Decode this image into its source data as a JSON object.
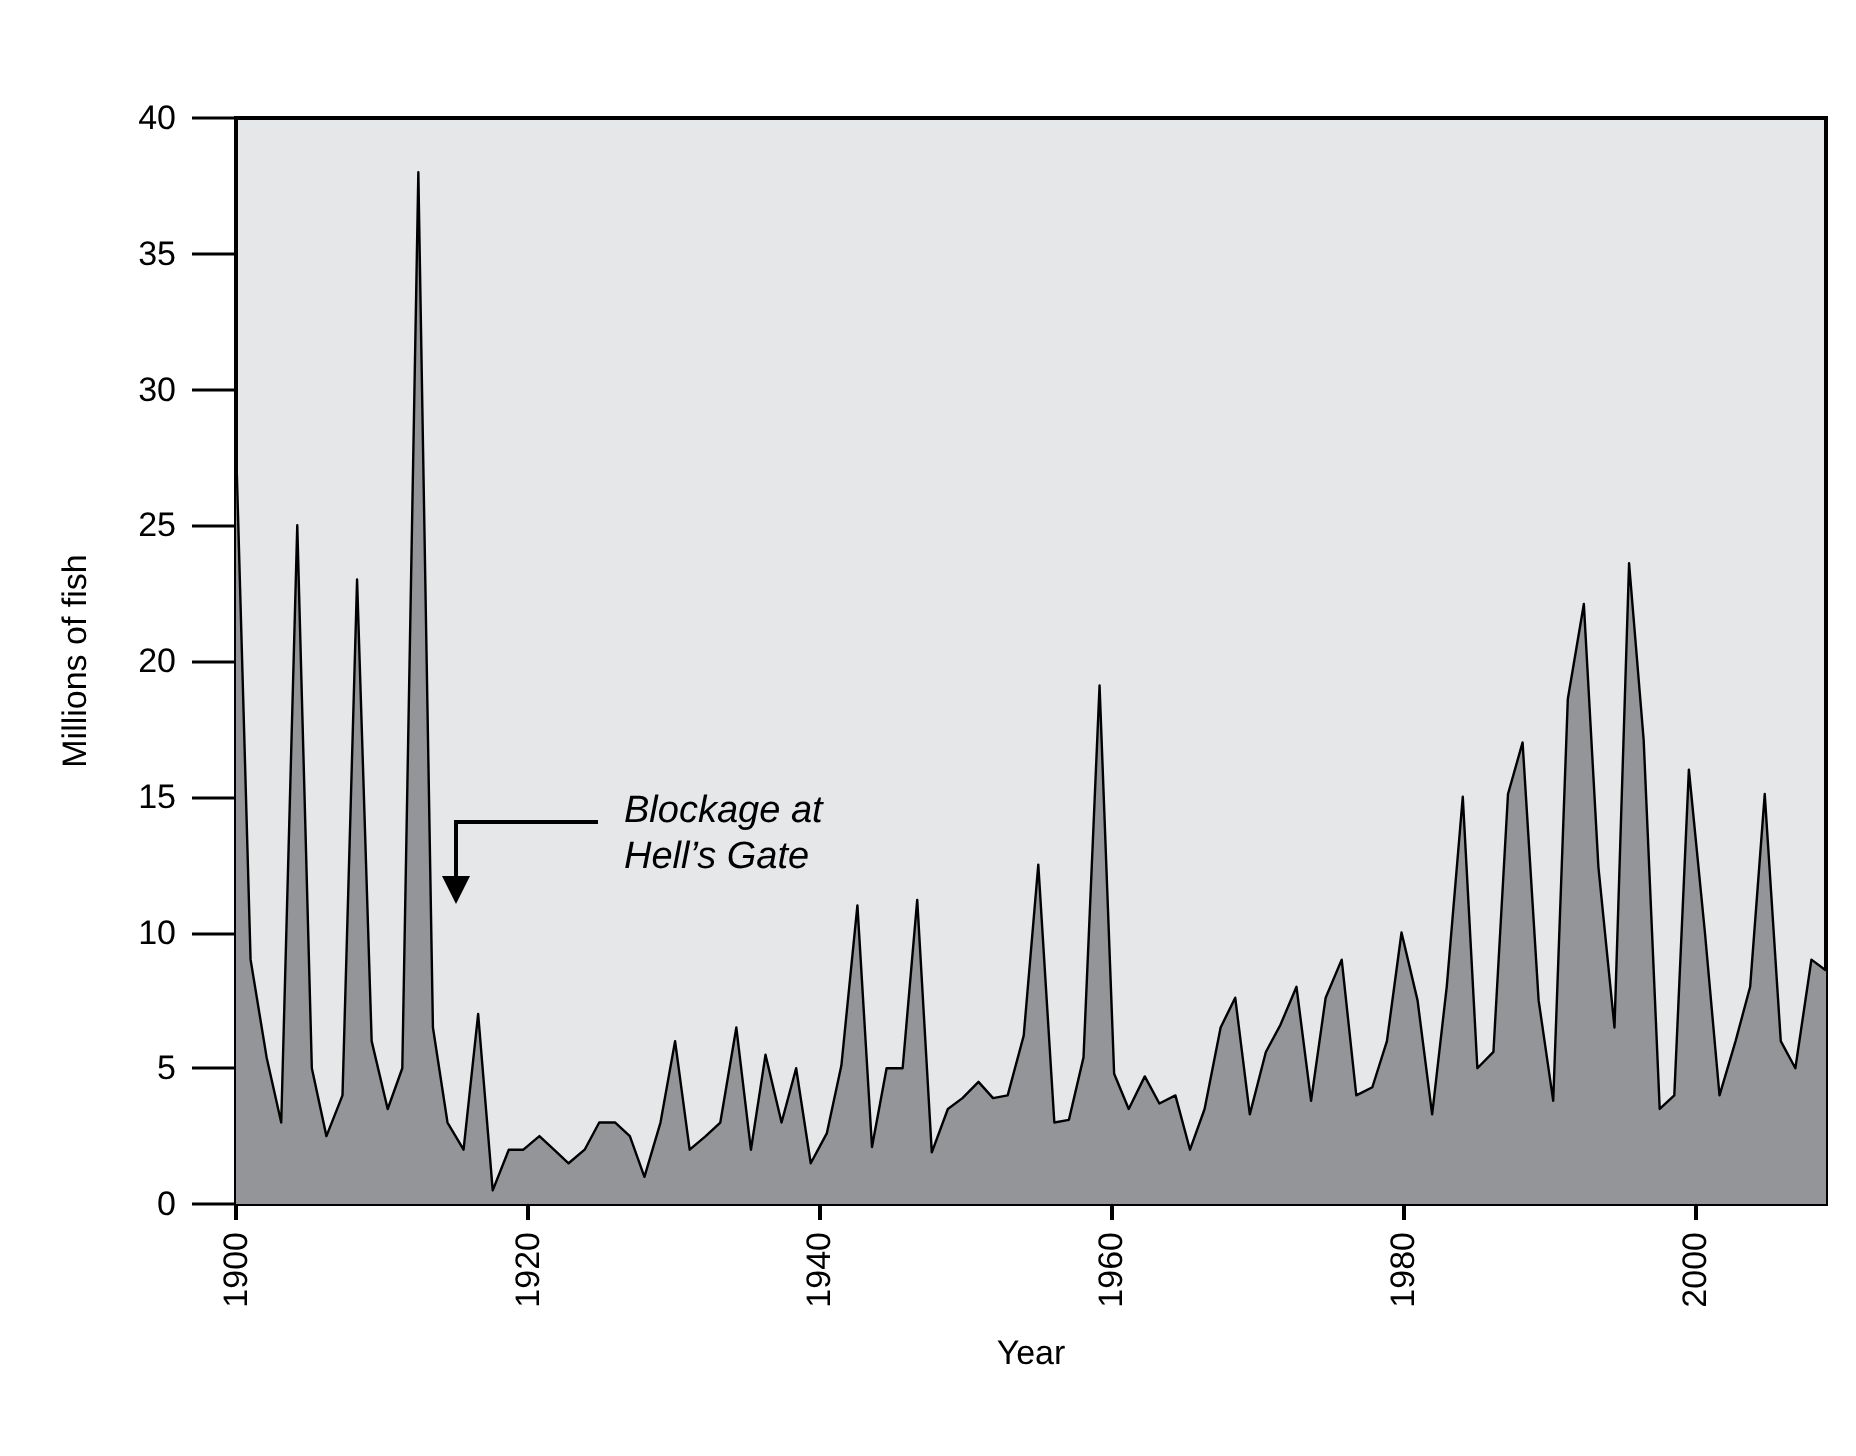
{
  "chart_data": {
    "type": "area",
    "xlabel": "Year",
    "ylabel": "Millions of fish",
    "xlim": [
      1900,
      2009
    ],
    "xticks": [
      1900,
      1920,
      1940,
      1960,
      1980,
      2000
    ],
    "ylim": [
      0,
      40
    ],
    "yticks": [
      0,
      5,
      10,
      15,
      20,
      25,
      30,
      35,
      40
    ],
    "grid": false,
    "marker": "none",
    "line_style": "solid",
    "annotations": [
      "Blockage at\nHell’s Gate"
    ],
    "series": [
      {
        "color": "#939598",
        "x": [
          1900.0,
          1901.0,
          1902.1,
          1903.1,
          1904.2,
          1905.2,
          1906.2,
          1907.3,
          1908.3,
          1909.3,
          1910.4,
          1911.4,
          1912.5,
          1913.5,
          1914.5,
          1915.6,
          1916.6,
          1917.6,
          1918.7,
          1919.7,
          1920.8,
          1921.8,
          1922.8,
          1923.9,
          1924.9,
          1926.0,
          1927.0,
          1928.0,
          1929.1,
          1930.1,
          1931.1,
          1932.2,
          1933.2,
          1934.3,
          1935.3,
          1936.3,
          1937.4,
          1938.4,
          1939.4,
          1940.5,
          1941.5,
          1942.6,
          1943.6,
          1944.6,
          1945.7,
          1946.7,
          1947.7,
          1948.8,
          1949.8,
          1950.9,
          1951.9,
          1952.9,
          1954.0,
          1955.0,
          1956.1,
          1957.1,
          1958.1,
          1959.2,
          1960.2,
          1961.2,
          1962.3,
          1963.3,
          1964.4,
          1965.4,
          1966.4,
          1967.5,
          1968.5,
          1969.5,
          1970.6,
          1971.6,
          1972.7,
          1973.7,
          1974.7,
          1975.8,
          1976.8,
          1977.9,
          1978.9,
          1979.9,
          1981.0,
          1982.0,
          1983.0,
          1984.1,
          1985.1,
          1986.2,
          1987.2,
          1988.2,
          1989.3,
          1990.3,
          1991.3,
          1992.4,
          1993.4,
          1994.5,
          1995.5,
          1996.5,
          1997.6,
          1998.6,
          1999.6,
          2000.7,
          2001.7,
          2002.8,
          2003.8,
          2004.8,
          2005.9,
          2006.9,
          2008.0,
          2009.0
        ],
        "values": [
          28,
          9,
          5.4,
          3,
          25,
          5,
          2.5,
          4,
          23,
          6,
          3.5,
          5,
          38,
          6.5,
          3,
          2,
          7,
          0.5,
          2,
          2,
          2.5,
          2,
          1.5,
          2,
          3,
          3,
          2.5,
          1,
          3,
          6,
          2,
          2.5,
          3,
          6.5,
          2,
          5.5,
          3,
          5,
          1.5,
          2.6,
          5.1,
          11,
          2.1,
          5,
          5,
          11.2,
          1.9,
          3.5,
          3.9,
          4.5,
          3.9,
          4,
          6.2,
          12.5,
          3,
          3.1,
          5.4,
          19.1,
          4.8,
          3.5,
          4.7,
          3.7,
          4,
          2,
          3.5,
          6.5,
          7.6,
          3.3,
          5.6,
          6.6,
          8,
          3.8,
          7.6,
          9,
          4,
          4.3,
          6,
          10,
          7.5,
          3.3,
          8,
          15,
          5,
          5.6,
          15.1,
          17,
          7.5,
          3.8,
          18.6,
          22.1,
          12.4,
          6.5,
          23.6,
          17.1,
          3.5,
          4,
          16,
          10,
          4,
          6,
          8,
          15.1,
          6,
          5,
          9,
          8.6
        ]
      }
    ]
  }
}
